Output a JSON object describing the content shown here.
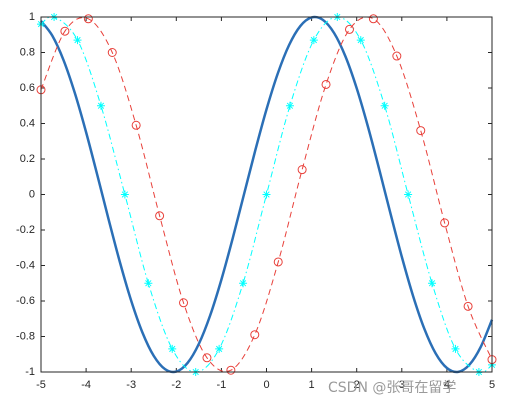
{
  "chart_data": {
    "type": "line",
    "xlim": [
      -5,
      5
    ],
    "ylim": [
      -1,
      1
    ],
    "xticks": [
      -5,
      -4,
      -3,
      -2,
      -1,
      0,
      1,
      2,
      3,
      4,
      5
    ],
    "yticks": [
      -1,
      -0.8,
      -0.6,
      -0.4,
      -0.2,
      0,
      0.2,
      0.4,
      0.6,
      0.8,
      1
    ],
    "grid": false,
    "series": [
      {
        "color": "#2b6fb6",
        "line_style": "-",
        "line_width": 2.5,
        "marker": "none",
        "x": [
          -5,
          -4.75,
          -4.5,
          -4.25,
          -4,
          -3.75,
          -3.5,
          -3.25,
          -3,
          -2.75,
          -2.5,
          -2.25,
          -2,
          -1.75,
          -1.5,
          -1.25,
          -1,
          -0.75,
          -0.5,
          -0.25,
          0,
          0.25,
          0.5,
          0.75,
          1,
          1.25,
          1.5,
          1.75,
          2,
          2.25,
          2.5,
          2.75,
          3,
          3.25,
          3.5,
          3.75,
          4,
          4.25,
          4.5,
          4.75,
          5
        ],
        "values": [
          0.9775,
          0.895,
          0.7568,
          0.5716,
          0.3508,
          0.1082,
          -0.1411,
          -0.3817,
          -0.5985,
          -0.7781,
          -0.9093,
          -0.984,
          -0.9975,
          -0.949,
          -0.8415,
          -0.6816,
          -0.4794,
          -0.2474,
          0,
          0.2474,
          0.4794,
          0.6816,
          0.8415,
          0.949,
          0.9975,
          0.984,
          0.9093,
          0.7781,
          0.5985,
          0.3817,
          0.1411,
          -0.1082,
          -0.3508,
          -0.5716,
          -0.7568,
          -0.895,
          -0.9775,
          -0.9993,
          -0.9589,
          -0.8589,
          -0.7055
        ]
      },
      {
        "color": "#00ffff",
        "line_style": "-.",
        "line_width": 1,
        "marker": "*",
        "x": [
          -5,
          -4.71,
          -4.19,
          -3.67,
          -3.14,
          -2.62,
          -2.09,
          -1.57,
          -1.05,
          -0.52,
          0,
          0.52,
          1.05,
          1.57,
          2.09,
          2.62,
          3.14,
          3.67,
          4.19,
          4.71,
          5
        ],
        "values": [
          0.96,
          1,
          0.87,
          0.5,
          0,
          -0.5,
          -0.87,
          -1,
          -0.87,
          -0.5,
          0,
          0.5,
          0.87,
          1,
          0.87,
          0.5,
          0,
          -0.5,
          -0.87,
          -1,
          -0.96
        ]
      },
      {
        "color": "#e8403a",
        "line_style": "--",
        "line_width": 1,
        "marker": "o",
        "x": [
          -5,
          -4.47,
          -3.95,
          -3.42,
          -2.89,
          -2.37,
          -1.84,
          -1.32,
          -0.79,
          -0.26,
          0.26,
          0.79,
          1.32,
          1.84,
          2.37,
          2.89,
          3.42,
          3.95,
          4.47,
          5
        ],
        "values": [
          0.59,
          0.92,
          0.99,
          0.8,
          0.39,
          -0.12,
          -0.61,
          -0.92,
          -0.99,
          -0.79,
          -0.38,
          0.14,
          0.62,
          0.93,
          0.99,
          0.78,
          0.36,
          -0.16,
          -0.63,
          -0.93
        ]
      }
    ]
  },
  "watermark": "CSDN @张哥在留学"
}
